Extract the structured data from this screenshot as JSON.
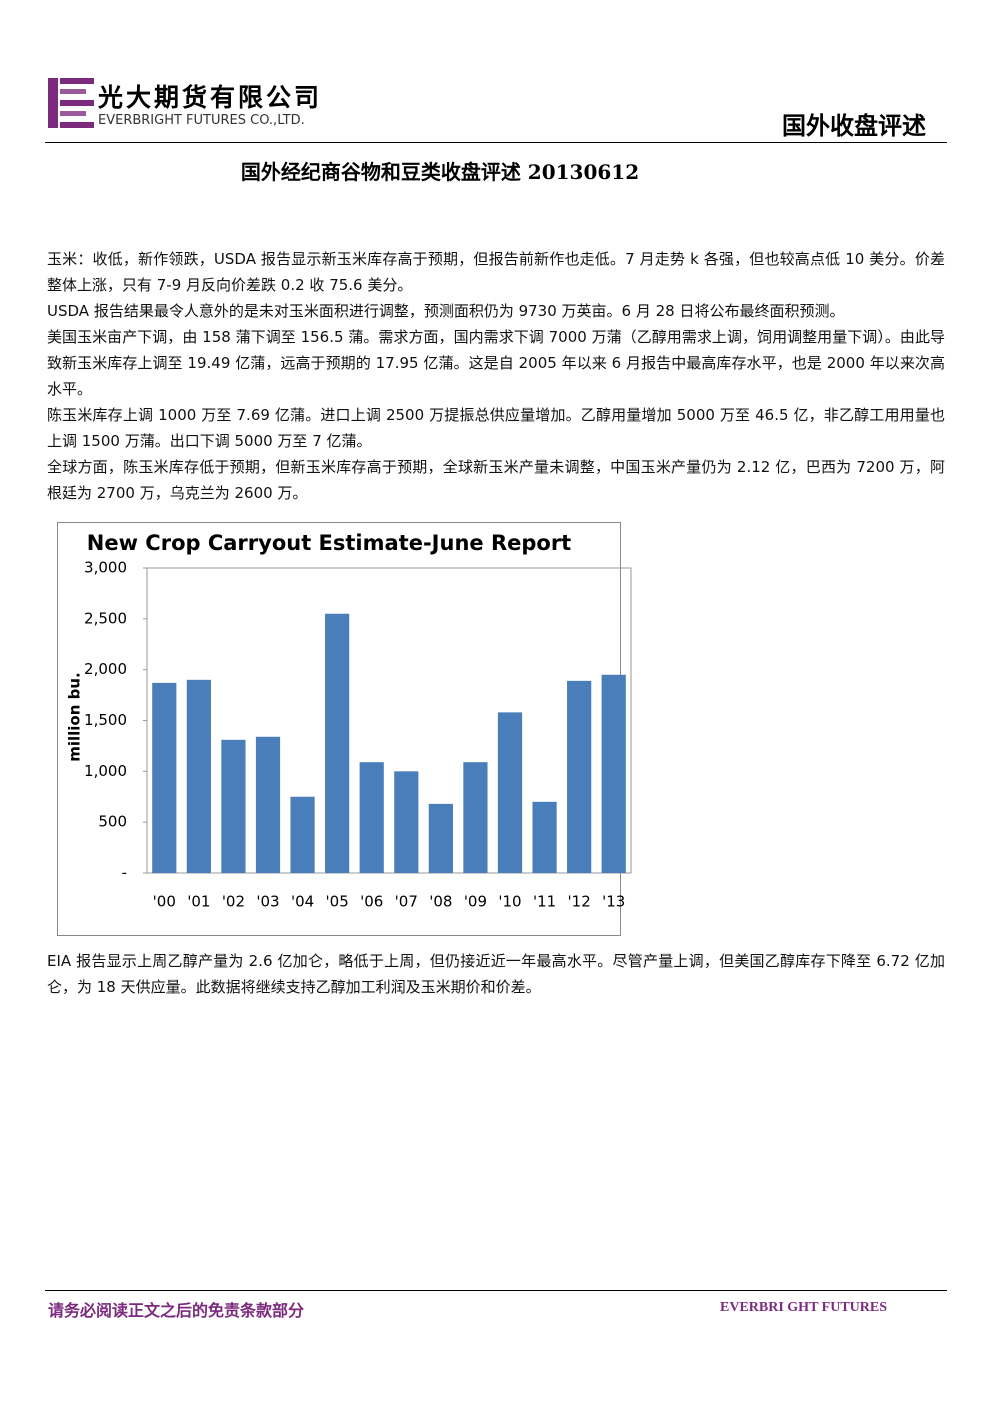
{
  "header": {
    "logo_cn": "光大期货有限公司",
    "logo_en": "EVERBRIGHT FUTURES CO.,LTD.",
    "section": "国外收盘评述"
  },
  "title": "国外经纪商谷物和豆类收盘评述 20130612",
  "paragraphs": [
    "玉米：收低，新作领跌，USDA 报告显示新玉米库存高于预期，但报告前新作也走低。7 月走势 k 各强，但也较高点低 10 美分。价差整体上涨，只有 7-9 月反向价差跌 0.2 收 75.6 美分。",
    "USDA 报告结果最令人意外的是未对玉米面积进行调整，预测面积仍为 9730 万英亩。6 月 28 日将公布最终面积预测。",
    "美国玉米亩产下调，由 158 蒲下调至 156.5 蒲。需求方面，国内需求下调 7000 万蒲（乙醇用需求上调，饲用调整用量下调）。由此导致新玉米库存上调至 19.49 亿蒲，远高于预期的 17.95 亿蒲。这是自 2005 年以来 6 月报告中最高库存水平，也是 2000 年以来次高水平。",
    "陈玉米库存上调 1000 万至 7.69 亿蒲。进口上调 2500 万提振总供应量增加。乙醇用量增加 5000 万至 46.5 亿，非乙醇工用用量也上调 1500 万蒲。出口下调 5000 万至 7 亿蒲。",
    "全球方面，陈玉米库存低于预期，但新玉米库存高于预期，全球新玉米产量未调整，中国玉米产量仍为 2.12 亿，巴西为 7200 万，阿根廷为 2700 万，乌克兰为 2600 万。"
  ],
  "chart_data": {
    "type": "bar",
    "title": "New Crop Carryout Estimate-June Report",
    "y_label": "million bu.",
    "categories": [
      "'00",
      "'01",
      "'02",
      "'03",
      "'04",
      "'05",
      "'06",
      "'07",
      "'08",
      "'09",
      "'10",
      "'11",
      "'12",
      "'13"
    ],
    "values": [
      1870,
      1900,
      1310,
      1340,
      750,
      2550,
      1090,
      1000,
      680,
      1090,
      1580,
      700,
      1890,
      1950
    ],
    "color": "#4a7ebb",
    "ylim": [
      0,
      3000
    ],
    "yticks": [
      {
        "value": 0,
        "label": "-"
      },
      500,
      {
        "value": 1000,
        "label": "1,000"
      },
      {
        "value": 1500,
        "label": "1,500"
      },
      {
        "value": 2000,
        "label": "2,000"
      },
      {
        "value": 2500,
        "label": "2,500"
      },
      {
        "value": 3000,
        "label": "3,000"
      }
    ],
    "grid": false
  },
  "after_chart": "EIA 报告显示上周乙醇产量为 2.6 亿加仑，略低于上周，但仍接近近一年最高水平。尽管产量上调，但美国乙醇库存下降至 6.72 亿加仑，为 18 天供应量。此数据将继续支持乙醇加工利润及玉米期价和价差。",
  "footer": {
    "disclaimer": "请务必阅读正文之后的免责条款部分",
    "brand": "EVERBRI GHT FUTURES"
  }
}
